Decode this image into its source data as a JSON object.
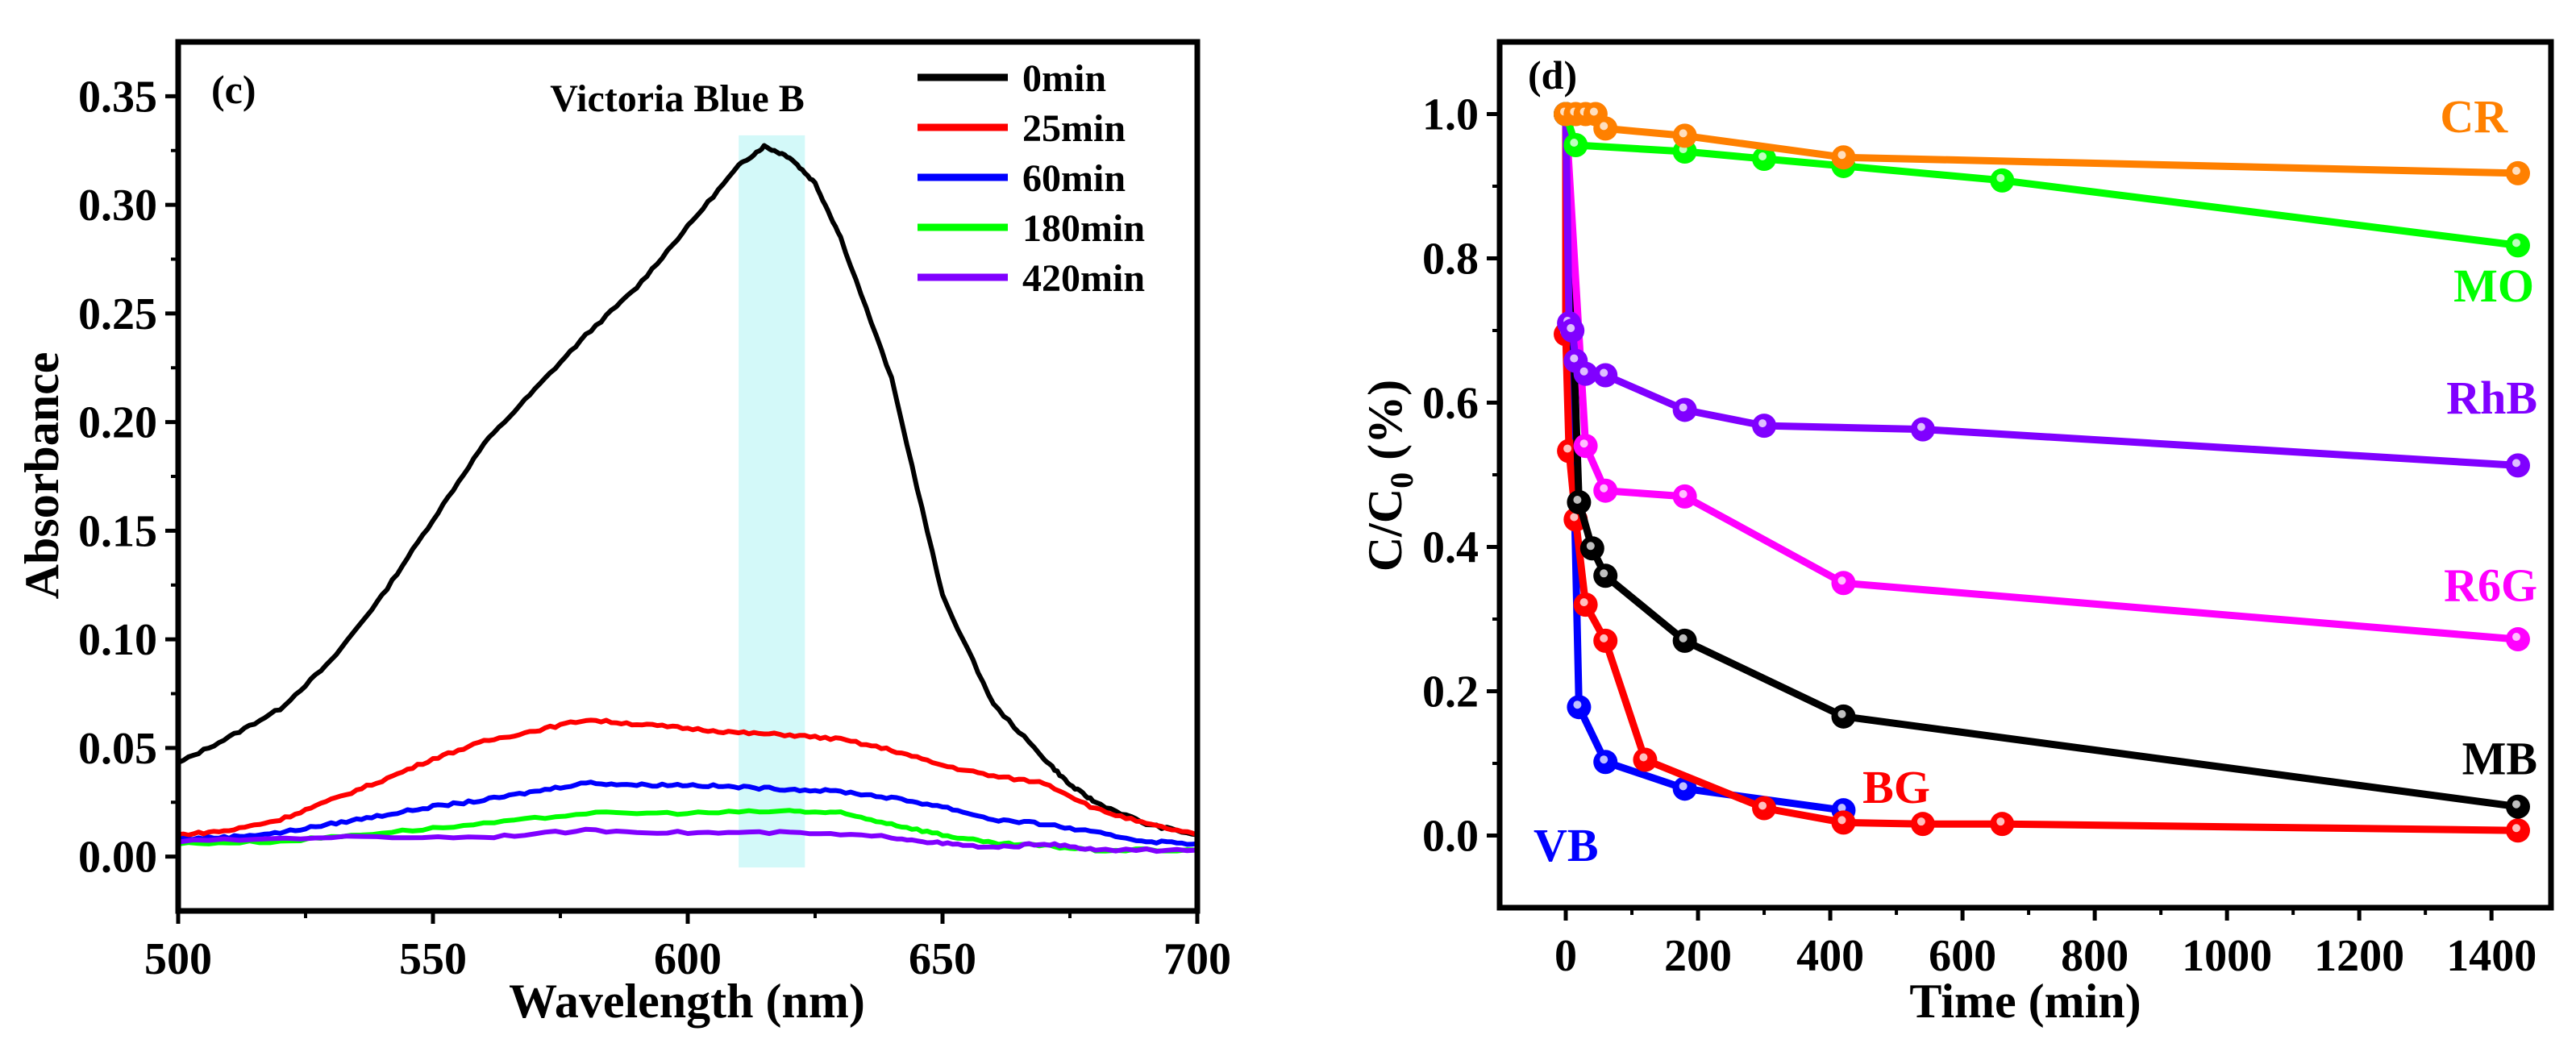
{
  "chart_data": [
    {
      "type": "line",
      "panel_label": "(c)",
      "title": "Victoria Blue B",
      "xlabel": "Wavelength (nm)",
      "ylabel": "Absorbance",
      "xlim": [
        500,
        700
      ],
      "ylim": [
        -0.025,
        0.375
      ],
      "xticks": [
        500,
        550,
        600,
        650,
        700
      ],
      "xtick_labels": [
        "500",
        "550",
        "600",
        "650",
        "700"
      ],
      "yticks": [
        0,
        0.05,
        0.1,
        0.15,
        0.2,
        0.25,
        0.3,
        0.35
      ],
      "ytick_labels": [
        "0.00",
        "0.05",
        "0.10",
        "0.15",
        "0.20",
        "0.25",
        "0.30",
        "0.35"
      ],
      "grid": false,
      "legend_position": "top-right",
      "highlight_band": {
        "x": [
          610,
          623
        ],
        "y": [
          -0.005,
          0.332
        ],
        "color": "#c8f8f8"
      },
      "series": [
        {
          "name": "0min",
          "color": "#000000",
          "x": [
            500,
            510,
            520,
            530,
            540,
            550,
            560,
            570,
            580,
            590,
            600,
            610,
            615,
            620,
            625,
            630,
            640,
            650,
            660,
            670,
            675,
            680,
            690,
            700
          ],
          "y": [
            0.043,
            0.055,
            0.068,
            0.09,
            0.12,
            0.155,
            0.19,
            0.215,
            0.24,
            0.262,
            0.29,
            0.318,
            0.327,
            0.322,
            0.31,
            0.285,
            0.22,
            0.12,
            0.07,
            0.045,
            0.033,
            0.025,
            0.015,
            0.01
          ]
        },
        {
          "name": "25min",
          "color": "#ff0000",
          "x": [
            500,
            510,
            520,
            530,
            540,
            550,
            560,
            570,
            580,
            590,
            600,
            610,
            620,
            630,
            640,
            650,
            660,
            670,
            680,
            690,
            700
          ],
          "y": [
            0.01,
            0.012,
            0.017,
            0.026,
            0.035,
            0.045,
            0.053,
            0.058,
            0.063,
            0.061,
            0.059,
            0.057,
            0.056,
            0.054,
            0.049,
            0.042,
            0.037,
            0.034,
            0.022,
            0.015,
            0.01
          ]
        },
        {
          "name": "60min",
          "color": "#0000ff",
          "x": [
            500,
            510,
            520,
            530,
            540,
            550,
            560,
            570,
            580,
            590,
            600,
            610,
            620,
            630,
            640,
            650,
            660,
            670,
            680,
            690,
            700
          ],
          "y": [
            0.008,
            0.009,
            0.011,
            0.015,
            0.019,
            0.023,
            0.026,
            0.03,
            0.034,
            0.033,
            0.033,
            0.032,
            0.031,
            0.03,
            0.027,
            0.023,
            0.017,
            0.015,
            0.011,
            0.007,
            0.006
          ]
        },
        {
          "name": "180min",
          "color": "#00ff00",
          "x": [
            500,
            520,
            540,
            560,
            580,
            600,
            620,
            630,
            640,
            650,
            660,
            670,
            680,
            700
          ],
          "y": [
            0.006,
            0.007,
            0.011,
            0.015,
            0.02,
            0.02,
            0.021,
            0.02,
            0.015,
            0.01,
            0.006,
            0.005,
            0.003,
            0.003
          ]
        },
        {
          "name": "420min",
          "color": "#8000ff",
          "x": [
            500,
            530,
            560,
            580,
            600,
            620,
            640,
            650,
            660,
            670,
            680,
            700
          ],
          "y": [
            0.007,
            0.009,
            0.009,
            0.012,
            0.011,
            0.011,
            0.009,
            0.006,
            0.004,
            0.006,
            0.003,
            0.003
          ]
        }
      ]
    },
    {
      "type": "line",
      "panel_label": "(d)",
      "xlabel": "Time (min)",
      "ylabel": "C/C",
      "ylabel_sub": "0",
      "ylabel_suffix": " (%)",
      "xlim": [
        -100,
        1490
      ],
      "ylim": [
        -0.1,
        1.1
      ],
      "xticks": [
        0,
        200,
        400,
        600,
        800,
        1000,
        1200,
        1400
      ],
      "xtick_labels": [
        "0",
        "200",
        "400",
        "600",
        "800",
        "1000",
        "1200",
        "1400"
      ],
      "yticks": [
        0,
        0.2,
        0.4,
        0.6,
        0.8,
        1.0
      ],
      "ytick_labels": [
        "0.0",
        "0.2",
        "0.4",
        "0.6",
        "0.8",
        "1.0"
      ],
      "grid": false,
      "series": [
        {
          "name": "CR",
          "color": "#ff8000",
          "x": [
            0,
            15,
            30,
            45,
            60,
            180,
            420,
            1440
          ],
          "y": [
            1.0,
            1.0,
            1.0,
            1.0,
            0.98,
            0.97,
            0.94,
            0.918
          ]
        },
        {
          "name": "MO",
          "color": "#00ff00",
          "x": [
            0,
            15,
            180,
            300,
            420,
            660,
            1440
          ],
          "y": [
            1.0,
            0.957,
            0.948,
            0.938,
            0.928,
            0.908,
            0.818
          ]
        },
        {
          "name": "RhB",
          "color": "#8000ff",
          "x": [
            0,
            5,
            10,
            15,
            30,
            60,
            180,
            300,
            540,
            1440
          ],
          "y": [
            1.0,
            0.71,
            0.7,
            0.658,
            0.64,
            0.638,
            0.59,
            0.568,
            0.563,
            0.513
          ]
        },
        {
          "name": "R6G",
          "color": "#ff00ff",
          "x": [
            0,
            30,
            60,
            180,
            420,
            1440
          ],
          "y": [
            1.0,
            0.54,
            0.478,
            0.47,
            0.35,
            0.272
          ]
        },
        {
          "name": "MB",
          "color": "#000000",
          "x": [
            0,
            20,
            40,
            60,
            180,
            420,
            1440
          ],
          "y": [
            1.0,
            0.462,
            0.398,
            0.36,
            0.27,
            0.165,
            0.04
          ]
        },
        {
          "name": "BG",
          "color": "#ff0000",
          "x": [
            0,
            0,
            5,
            15,
            30,
            60,
            120,
            300,
            420,
            540,
            660,
            1440
          ],
          "y": [
            1.0,
            0.695,
            0.533,
            0.438,
            0.32,
            0.27,
            0.105,
            0.038,
            0.018,
            0.016,
            0.016,
            0.007
          ]
        },
        {
          "name": "VB",
          "color": "#0000ff",
          "x": [
            0,
            20,
            60,
            180,
            420
          ],
          "y": [
            1.0,
            0.178,
            0.102,
            0.065,
            0.035
          ]
        }
      ]
    }
  ]
}
